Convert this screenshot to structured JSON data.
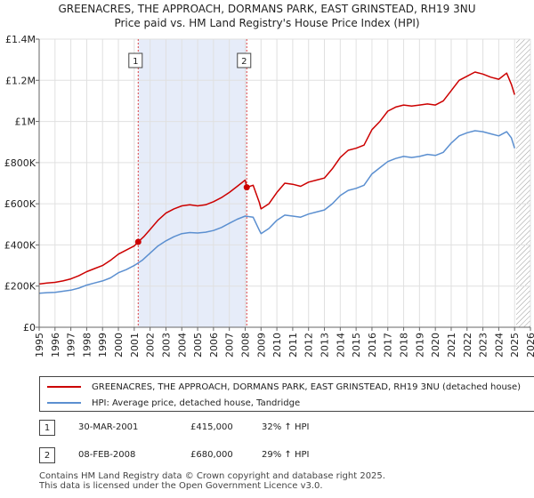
{
  "chart_data": {
    "type": "line",
    "title": "GREENACRES, THE APPROACH, DORMANS PARK, EAST GRINSTEAD, RH19 3NU",
    "subtitle": "Price paid vs. HM Land Registry's House Price Index (HPI)",
    "xlim": [
      1995,
      2026
    ],
    "ylim": [
      0,
      1400000
    ],
    "x_ticks": [
      "1995",
      "1996",
      "1997",
      "1998",
      "1999",
      "2000",
      "2001",
      "2002",
      "2003",
      "2004",
      "2005",
      "2006",
      "2007",
      "2008",
      "2009",
      "2010",
      "2011",
      "2012",
      "2013",
      "2014",
      "2015",
      "2016",
      "2017",
      "2018",
      "2019",
      "2020",
      "2021",
      "2022",
      "2023",
      "2024",
      "2025",
      "2026"
    ],
    "y_ticks": [
      {
        "value": 0,
        "label": "£0"
      },
      {
        "value": 200000,
        "label": "£200K"
      },
      {
        "value": 400000,
        "label": "£400K"
      },
      {
        "value": 600000,
        "label": "£600K"
      },
      {
        "value": 800000,
        "label": "£800K"
      },
      {
        "value": 1000000,
        "label": "£1M"
      },
      {
        "value": 1200000,
        "label": "£1.2M"
      },
      {
        "value": 1400000,
        "label": "£1.4M"
      }
    ],
    "shaded_period": {
      "start": 2001.25,
      "end": 2008.1
    },
    "future_hatch_start": 2025.1,
    "markers": [
      {
        "label": "1",
        "x": 2001.25,
        "y": 415000
      },
      {
        "label": "2",
        "x": 2008.1,
        "y": 680000
      }
    ],
    "series": [
      {
        "name": "GREENACRES, THE APPROACH, DORMANS PARK, EAST GRINSTEAD, RH19 3NU (detached house)",
        "color": "#cc0000",
        "x": [
          1995.0,
          1995.5,
          1996.0,
          1996.5,
          1997.0,
          1997.5,
          1998.0,
          1998.5,
          1999.0,
          1999.5,
          2000.0,
          2000.5,
          2001.0,
          2001.25,
          2001.6,
          2002.0,
          2002.5,
          2003.0,
          2003.5,
          2004.0,
          2004.5,
          2005.0,
          2005.5,
          2006.0,
          2006.5,
          2007.0,
          2007.5,
          2008.0,
          2008.1,
          2008.5,
          2008.9,
          2009.0,
          2009.5,
          2010.0,
          2010.5,
          2011.0,
          2011.5,
          2012.0,
          2012.5,
          2013.0,
          2013.5,
          2014.0,
          2014.5,
          2015.0,
          2015.5,
          2016.0,
          2016.5,
          2017.0,
          2017.5,
          2018.0,
          2018.5,
          2019.0,
          2019.5,
          2020.0,
          2020.5,
          2021.0,
          2021.5,
          2022.0,
          2022.5,
          2023.0,
          2023.5,
          2024.0,
          2024.5,
          2024.8,
          2025.0
        ],
        "values": [
          210000,
          215000,
          218000,
          225000,
          235000,
          250000,
          270000,
          285000,
          300000,
          325000,
          355000,
          375000,
          395000,
          415000,
          440000,
          475000,
          520000,
          555000,
          575000,
          590000,
          595000,
          590000,
          595000,
          610000,
          630000,
          655000,
          685000,
          715000,
          680000,
          690000,
          605000,
          575000,
          600000,
          655000,
          700000,
          695000,
          685000,
          705000,
          715000,
          725000,
          770000,
          825000,
          860000,
          870000,
          885000,
          960000,
          1000000,
          1050000,
          1070000,
          1080000,
          1075000,
          1080000,
          1085000,
          1080000,
          1100000,
          1150000,
          1200000,
          1220000,
          1240000,
          1230000,
          1215000,
          1205000,
          1235000,
          1180000,
          1130000
        ]
      },
      {
        "name": "HPI: Average price, detached house, Tandridge",
        "color": "#5b8fd0",
        "x": [
          1995.0,
          1995.5,
          1996.0,
          1996.5,
          1997.0,
          1997.5,
          1998.0,
          1998.5,
          1999.0,
          1999.5,
          2000.0,
          2000.5,
          2001.0,
          2001.5,
          2002.0,
          2002.5,
          2003.0,
          2003.5,
          2004.0,
          2004.5,
          2005.0,
          2005.5,
          2006.0,
          2006.5,
          2007.0,
          2007.5,
          2008.0,
          2008.5,
          2008.9,
          2009.0,
          2009.5,
          2010.0,
          2010.5,
          2011.0,
          2011.5,
          2012.0,
          2012.5,
          2013.0,
          2013.5,
          2014.0,
          2014.5,
          2015.0,
          2015.5,
          2016.0,
          2016.5,
          2017.0,
          2017.5,
          2018.0,
          2018.5,
          2019.0,
          2019.5,
          2020.0,
          2020.5,
          2021.0,
          2021.5,
          2022.0,
          2022.5,
          2023.0,
          2023.5,
          2024.0,
          2024.5,
          2024.8,
          2025.0
        ],
        "values": [
          165000,
          168000,
          170000,
          175000,
          180000,
          190000,
          205000,
          215000,
          225000,
          240000,
          265000,
          280000,
          300000,
          325000,
          360000,
          395000,
          420000,
          440000,
          455000,
          460000,
          458000,
          462000,
          470000,
          485000,
          505000,
          525000,
          540000,
          535000,
          470000,
          455000,
          480000,
          520000,
          545000,
          540000,
          535000,
          550000,
          560000,
          570000,
          600000,
          640000,
          665000,
          675000,
          690000,
          745000,
          775000,
          805000,
          820000,
          830000,
          825000,
          830000,
          840000,
          835000,
          850000,
          895000,
          930000,
          945000,
          955000,
          950000,
          940000,
          930000,
          950000,
          920000,
          870000
        ]
      }
    ]
  },
  "legend": {
    "items": [
      {
        "label": "GREENACRES, THE APPROACH, DORMANS PARK, EAST GRINSTEAD, RH19 3NU (detached house)",
        "color": "#cc0000"
      },
      {
        "label": "HPI: Average price, detached house, Tandridge",
        "color": "#5b8fd0"
      }
    ]
  },
  "sales": [
    {
      "num": "1",
      "date": "30-MAR-2001",
      "price": "£415,000",
      "hpi": "32% ↑ HPI"
    },
    {
      "num": "2",
      "date": "08-FEB-2008",
      "price": "£680,000",
      "hpi": "29% ↑ HPI"
    }
  ],
  "footer": {
    "line1": "Contains HM Land Registry data © Crown copyright and database right 2025.",
    "line2": "This data is licensed under the Open Government Licence v3.0."
  }
}
